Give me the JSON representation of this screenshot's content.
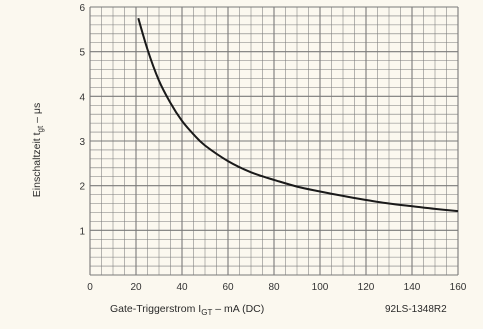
{
  "chart_data": {
    "type": "line",
    "title": "",
    "xlabel": "Gate-Triggerstrom I",
    "xlabel_sub": "GT",
    "xlabel_rest": " – mA (DC)",
    "ylabel": "Einschaltzeit t",
    "ylabel_sub": "gt",
    "ylabel_rest": " – μs",
    "reference": "92LS-1348R2",
    "xlim": [
      0,
      160
    ],
    "ylim": [
      0,
      6
    ],
    "x_ticks": [
      0,
      20,
      40,
      60,
      80,
      100,
      120,
      140,
      160
    ],
    "y_ticks": [
      1,
      2,
      3,
      4,
      5,
      6
    ],
    "grid": true,
    "series": [
      {
        "x": [
          21,
          25,
          30,
          35,
          40,
          45,
          50,
          60,
          70,
          80,
          90,
          100,
          110,
          120,
          130,
          140,
          150,
          160
        ],
        "y": [
          5.75,
          5.05,
          4.35,
          3.85,
          3.45,
          3.15,
          2.9,
          2.55,
          2.3,
          2.13,
          1.98,
          1.87,
          1.77,
          1.68,
          1.6,
          1.54,
          1.48,
          1.43
        ]
      }
    ],
    "colors": {
      "grid": "#7a7a7a",
      "curve": "#1a1a1a",
      "background": "#fbf8ef"
    }
  }
}
